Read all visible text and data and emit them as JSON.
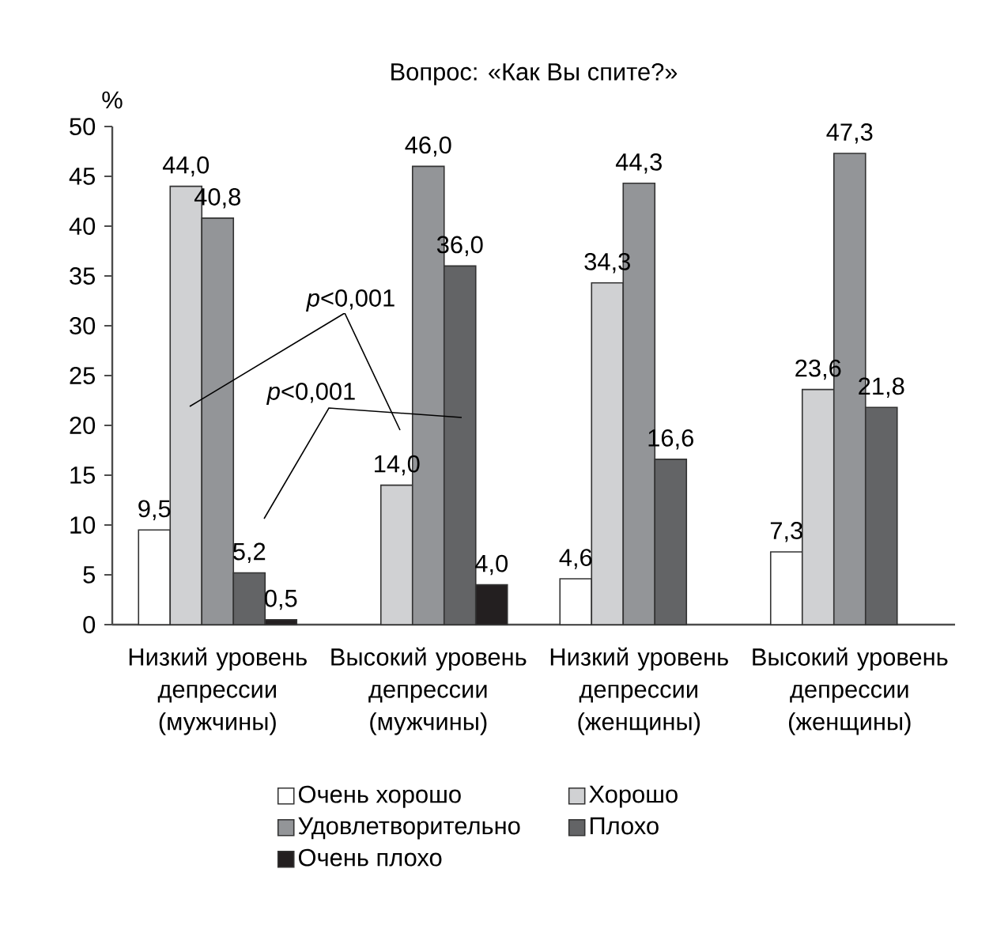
{
  "chart_data": {
    "type": "bar",
    "title": "Вопрос: «Как Вы спите?»",
    "ylabel": "%",
    "categories": [
      "Низкий уровень депрессии (мужчины)",
      "Высокий уровень депрессии (мужчины)",
      "Низкий уровень депрессии (женщины)",
      "Высокий уровень депрессии (женщины)"
    ],
    "series": [
      {
        "name": "Очень хорошо",
        "color": "#ffffff",
        "values": [
          9.5,
          null,
          4.6,
          7.3
        ],
        "value_labels": [
          "9,5",
          null,
          "4,6",
          "7,3"
        ]
      },
      {
        "name": "Хорошо",
        "color": "#d0d1d3",
        "values": [
          44.0,
          14.0,
          34.3,
          23.6
        ],
        "value_labels": [
          "44,0",
          "14,0",
          "34,3",
          "23,6"
        ]
      },
      {
        "name": "Удовлетворительно",
        "color": "#939598",
        "values": [
          40.8,
          46.0,
          44.3,
          47.3
        ],
        "value_labels": [
          "40,8",
          "46,0",
          "44,3",
          "47,3"
        ]
      },
      {
        "name": "Плохо",
        "color": "#636466",
        "values": [
          5.2,
          36.0,
          16.6,
          21.8
        ],
        "value_labels": [
          "5,2",
          "36,0",
          "16,6",
          "21,8"
        ]
      },
      {
        "name": "Очень плохо",
        "color": "#231f20",
        "values": [
          0.5,
          4.0,
          null,
          null
        ],
        "value_labels": [
          "0,5",
          "4,0",
          null,
          null
        ]
      }
    ],
    "ylim": [
      0,
      50
    ],
    "yticks": [
      0,
      5,
      10,
      15,
      20,
      25,
      30,
      35,
      40,
      45,
      50
    ],
    "legend": "bottom",
    "annotations": [
      "*p*<0,001",
      "*p*<0,001"
    ]
  }
}
